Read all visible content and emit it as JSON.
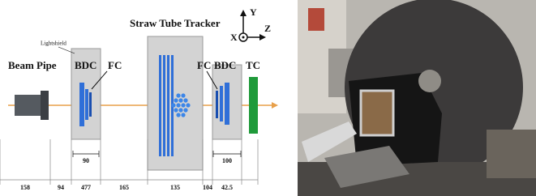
{
  "diagram": {
    "labels": {
      "beam_pipe": "Beam Pipe",
      "bdc_1": "BDC",
      "fc_1": "FC",
      "lightshield": "Lightshield",
      "tracker": "Straw Tube Tracker",
      "fc_2": "FC",
      "bdc_2": "BDC",
      "tc": "TC"
    },
    "axes": {
      "y": "Y",
      "x": "X",
      "z": "Z"
    },
    "widths": {
      "bdc_1": "90",
      "bdc_2": "100"
    },
    "distances": [
      "158",
      "94",
      "477",
      "165",
      "135",
      "104",
      "42.5"
    ]
  }
}
